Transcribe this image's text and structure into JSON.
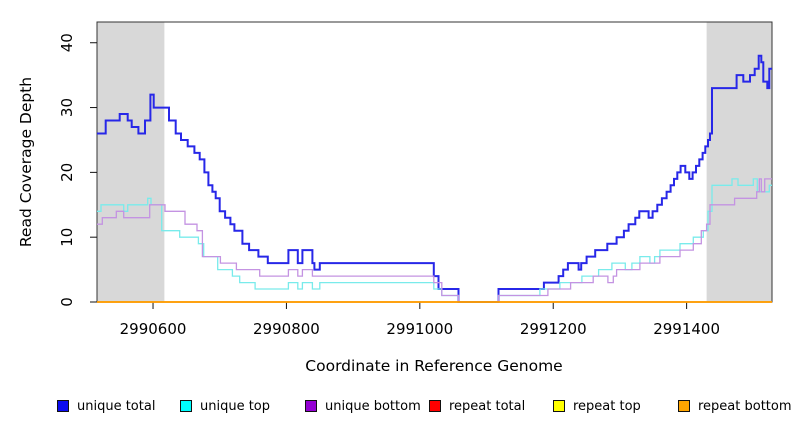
{
  "chart_data": {
    "type": "line",
    "subtype": "step",
    "title": "",
    "xlabel": "Coordinate in Reference Genome",
    "ylabel": "Read Coverage Depth",
    "xlim": [
      2990516,
      2991528
    ],
    "ylim": [
      0,
      43.2
    ],
    "x_ticks": [
      2990600,
      2990800,
      2991000,
      2991200,
      2991400
    ],
    "y_ticks": [
      0,
      10,
      20,
      30,
      40
    ],
    "grid": false,
    "legend_position": "bottom",
    "band_color": "#d8d8d8",
    "shaded_bands": [
      {
        "x_start": 2990516,
        "x_end": 2990617
      },
      {
        "x_start": 2991430,
        "x_end": 2991528
      }
    ],
    "series": [
      {
        "name": "unique total",
        "line_color": "#2727e8",
        "legend_color": "#0b0bf0",
        "line_width": 2,
        "points": [
          [
            2990516,
            26
          ],
          [
            2990529,
            28
          ],
          [
            2990550,
            29
          ],
          [
            2990562,
            28
          ],
          [
            2990568,
            27
          ],
          [
            2990578,
            26
          ],
          [
            2990588,
            28
          ],
          [
            2990596,
            32
          ],
          [
            2990601,
            30
          ],
          [
            2990624,
            28
          ],
          [
            2990634,
            26
          ],
          [
            2990642,
            25
          ],
          [
            2990652,
            24
          ],
          [
            2990662,
            23
          ],
          [
            2990670,
            22
          ],
          [
            2990677,
            20
          ],
          [
            2990683,
            18
          ],
          [
            2990689,
            17
          ],
          [
            2990694,
            16
          ],
          [
            2990700,
            14
          ],
          [
            2990708,
            13
          ],
          [
            2990716,
            12
          ],
          [
            2990722,
            11
          ],
          [
            2990734,
            9
          ],
          [
            2990744,
            8
          ],
          [
            2990758,
            7
          ],
          [
            2990772,
            6
          ],
          [
            2990803,
            8
          ],
          [
            2990817,
            6
          ],
          [
            2990824,
            8
          ],
          [
            2990839,
            6
          ],
          [
            2990842,
            5
          ],
          [
            2990850,
            6
          ],
          [
            2991021,
            4
          ],
          [
            2991028,
            2
          ],
          [
            2991058,
            0
          ],
          [
            2991118,
            2
          ],
          [
            2991186,
            3
          ],
          [
            2991208,
            4
          ],
          [
            2991215,
            5
          ],
          [
            2991222,
            6
          ],
          [
            2991238,
            5
          ],
          [
            2991242,
            6
          ],
          [
            2991250,
            7
          ],
          [
            2991263,
            8
          ],
          [
            2991281,
            9
          ],
          [
            2991295,
            10
          ],
          [
            2991306,
            11
          ],
          [
            2991313,
            12
          ],
          [
            2991323,
            13
          ],
          [
            2991329,
            14
          ],
          [
            2991343,
            13
          ],
          [
            2991349,
            14
          ],
          [
            2991356,
            15
          ],
          [
            2991363,
            16
          ],
          [
            2991370,
            17
          ],
          [
            2991376,
            18
          ],
          [
            2991381,
            19
          ],
          [
            2991386,
            20
          ],
          [
            2991391,
            21
          ],
          [
            2991398,
            20
          ],
          [
            2991404,
            19
          ],
          [
            2991409,
            20
          ],
          [
            2991414,
            21
          ],
          [
            2991419,
            22
          ],
          [
            2991424,
            23
          ],
          [
            2991428,
            24
          ],
          [
            2991432,
            25
          ],
          [
            2991435,
            26
          ],
          [
            2991438,
            33
          ],
          [
            2991475,
            35
          ],
          [
            2991485,
            34
          ],
          [
            2991495,
            35
          ],
          [
            2991502,
            36
          ],
          [
            2991508,
            38
          ],
          [
            2991512,
            37
          ],
          [
            2991515,
            34
          ],
          [
            2991521,
            33
          ],
          [
            2991524,
            36
          ]
        ]
      },
      {
        "name": "unique top",
        "line_color": "#79ebeb",
        "legend_color": "#00ffff",
        "line_width": 1.3,
        "points": [
          [
            2990516,
            14
          ],
          [
            2990522,
            15
          ],
          [
            2990556,
            14
          ],
          [
            2990562,
            15
          ],
          [
            2990592,
            16
          ],
          [
            2990597,
            15
          ],
          [
            2990613,
            11
          ],
          [
            2990640,
            10
          ],
          [
            2990668,
            9
          ],
          [
            2990676,
            7
          ],
          [
            2990697,
            5
          ],
          [
            2990719,
            4
          ],
          [
            2990730,
            3
          ],
          [
            2990753,
            2
          ],
          [
            2990803,
            3
          ],
          [
            2990817,
            2
          ],
          [
            2990824,
            3
          ],
          [
            2990839,
            2
          ],
          [
            2990850,
            3
          ],
          [
            2991021,
            2
          ],
          [
            2991033,
            1
          ],
          [
            2991058,
            0
          ],
          [
            2991118,
            1
          ],
          [
            2991180,
            2
          ],
          [
            2991210,
            3
          ],
          [
            2991243,
            4
          ],
          [
            2991268,
            5
          ],
          [
            2991288,
            6
          ],
          [
            2991308,
            5
          ],
          [
            2991318,
            6
          ],
          [
            2991330,
            7
          ],
          [
            2991345,
            6
          ],
          [
            2991352,
            7
          ],
          [
            2991360,
            8
          ],
          [
            2991390,
            9
          ],
          [
            2991410,
            10
          ],
          [
            2991425,
            11
          ],
          [
            2991432,
            14
          ],
          [
            2991438,
            18
          ],
          [
            2991468,
            19
          ],
          [
            2991477,
            18
          ],
          [
            2991500,
            19
          ],
          [
            2991506,
            17
          ],
          [
            2991524,
            18
          ]
        ]
      },
      {
        "name": "unique bottom",
        "line_color": "#c493e2",
        "legend_color": "#9400d3",
        "line_width": 1.3,
        "points": [
          [
            2990516,
            12
          ],
          [
            2990524,
            13
          ],
          [
            2990545,
            14
          ],
          [
            2990556,
            13
          ],
          [
            2990595,
            15
          ],
          [
            2990618,
            14
          ],
          [
            2990648,
            12
          ],
          [
            2990666,
            11
          ],
          [
            2990674,
            7
          ],
          [
            2990701,
            6
          ],
          [
            2990725,
            5
          ],
          [
            2990760,
            4
          ],
          [
            2990803,
            5
          ],
          [
            2990817,
            4
          ],
          [
            2990824,
            5
          ],
          [
            2990839,
            4
          ],
          [
            2991021,
            3
          ],
          [
            2991033,
            1
          ],
          [
            2991058,
            0
          ],
          [
            2991118,
            1
          ],
          [
            2991192,
            2
          ],
          [
            2991226,
            3
          ],
          [
            2991260,
            4
          ],
          [
            2991282,
            3
          ],
          [
            2991290,
            4
          ],
          [
            2991295,
            5
          ],
          [
            2991330,
            6
          ],
          [
            2991360,
            7
          ],
          [
            2991390,
            8
          ],
          [
            2991410,
            9
          ],
          [
            2991422,
            11
          ],
          [
            2991430,
            12
          ],
          [
            2991435,
            15
          ],
          [
            2991472,
            16
          ],
          [
            2991505,
            17
          ],
          [
            2991509,
            19
          ],
          [
            2991512,
            17
          ],
          [
            2991517,
            19
          ]
        ]
      },
      {
        "name": "repeat total",
        "line_color": "#e00000",
        "legend_color": "#ff0000",
        "line_width": 1.3,
        "points": [
          [
            2990516,
            0
          ]
        ]
      },
      {
        "name": "repeat top",
        "line_color": "#f0f000",
        "legend_color": "#ffff00",
        "line_width": 1.3,
        "points": [
          [
            2990516,
            0
          ]
        ]
      },
      {
        "name": "repeat bottom",
        "line_color": "#ff9d00",
        "legend_color": "#ffa500",
        "line_width": 1.8,
        "points": [
          [
            2990516,
            0
          ]
        ]
      }
    ]
  },
  "axis_style": {
    "box_color": "#333333",
    "tick_color": "#111111",
    "tick_label_color": "#000000"
  }
}
